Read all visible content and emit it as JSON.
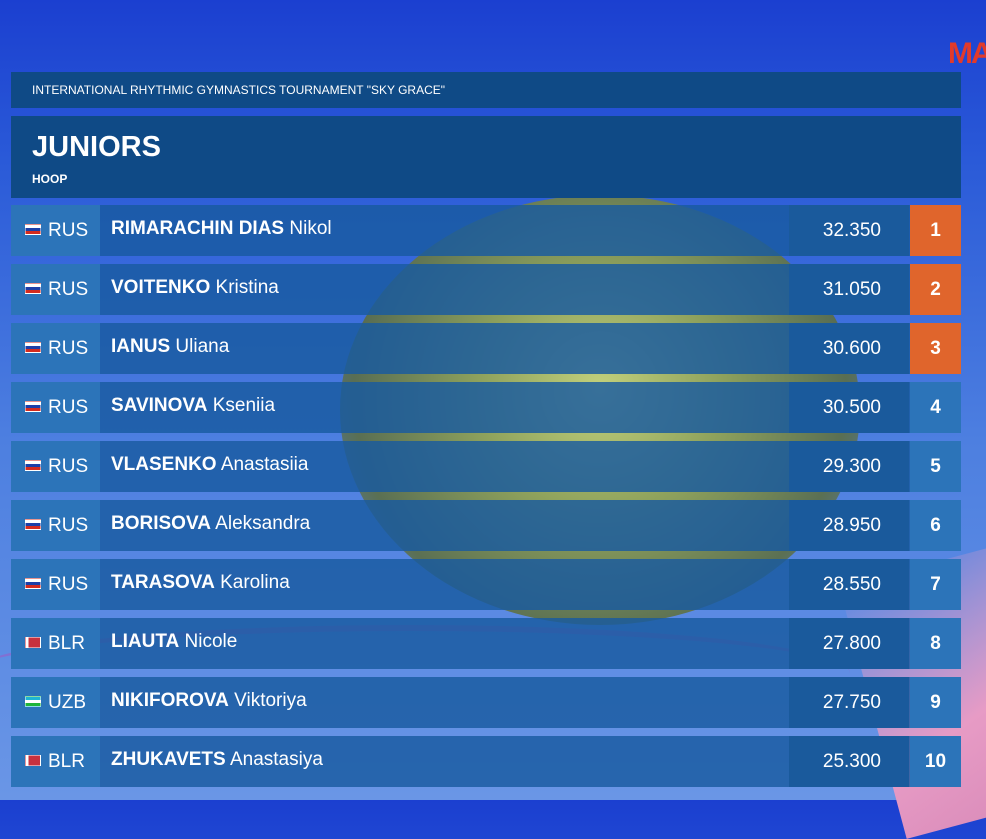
{
  "logo_text": "MA",
  "tournament": "INTERNATIONAL RHYTHMIC GYMNASTICS TOURNAMENT \"SKY GRACE\"",
  "category": "JUNIORS",
  "apparatus": "HOOP",
  "colors": {
    "medal": "#e0652c",
    "rank": "#2c74b9"
  },
  "results": [
    {
      "country": "RUS",
      "flag": "russia-flag-icon",
      "surname": "RIMARACHIN DIAS",
      "given": "Nikol",
      "score": "32.350",
      "rank": "1",
      "medal": true
    },
    {
      "country": "RUS",
      "flag": "russia-flag-icon",
      "surname": "VOITENKO",
      "given": "Kristina",
      "score": "31.050",
      "rank": "2",
      "medal": true
    },
    {
      "country": "RUS",
      "flag": "russia-flag-icon",
      "surname": "IANUS",
      "given": "Uliana",
      "score": "30.600",
      "rank": "3",
      "medal": true
    },
    {
      "country": "RUS",
      "flag": "russia-flag-icon",
      "surname": "SAVINOVA",
      "given": "Kseniia",
      "score": "30.500",
      "rank": "4",
      "medal": false
    },
    {
      "country": "RUS",
      "flag": "russia-flag-icon",
      "surname": "VLASENKO",
      "given": "Anastasiia",
      "score": "29.300",
      "rank": "5",
      "medal": false
    },
    {
      "country": "RUS",
      "flag": "russia-flag-icon",
      "surname": "BORISOVA",
      "given": "Aleksandra",
      "score": "28.950",
      "rank": "6",
      "medal": false
    },
    {
      "country": "RUS",
      "flag": "russia-flag-icon",
      "surname": "TARASOVA",
      "given": "Karolina",
      "score": "28.550",
      "rank": "7",
      "medal": false
    },
    {
      "country": "BLR",
      "flag": "belarus-flag-icon",
      "surname": "LIAUTA",
      "given": "Nicole",
      "score": "27.800",
      "rank": "8",
      "medal": false
    },
    {
      "country": "UZB",
      "flag": "uzbekistan-flag-icon",
      "surname": "NIKIFOROVA",
      "given": "Viktoriya",
      "score": "27.750",
      "rank": "9",
      "medal": false
    },
    {
      "country": "BLR",
      "flag": "belarus-flag-icon",
      "surname": "ZHUKAVETS",
      "given": "Anastasiya",
      "score": "25.300",
      "rank": "10",
      "medal": false
    }
  ]
}
